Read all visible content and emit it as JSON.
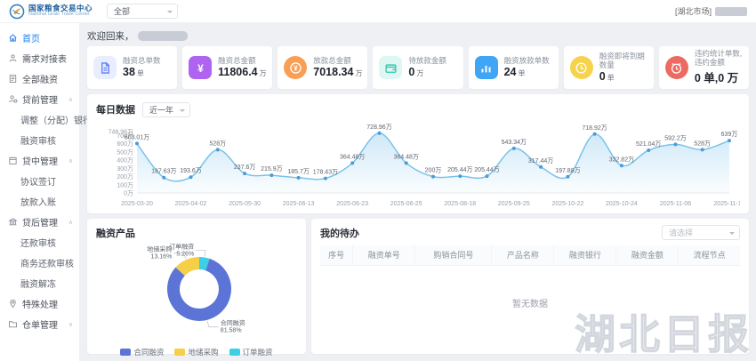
{
  "header": {
    "logo": {
      "title": "国家粮食交易中心",
      "subtitle": "National Grain Trade Center"
    },
    "scope_select": {
      "value": "全部"
    },
    "market_tag": "[湖北市场]"
  },
  "sidebar": {
    "items": [
      {
        "id": "home",
        "label": "首页",
        "icon": "home-icon",
        "type": "item",
        "active": true
      },
      {
        "id": "demand-list",
        "label": "需求对接表",
        "icon": "user-icon",
        "type": "item"
      },
      {
        "id": "all-financing",
        "label": "全部融资",
        "icon": "list-icon",
        "type": "item"
      },
      {
        "id": "pre-loan",
        "label": "贷前管理",
        "icon": "user-gear-icon",
        "type": "group",
        "state": "expanded"
      },
      {
        "id": "adjust-bank",
        "label": "调整（分配）银行",
        "type": "subitem"
      },
      {
        "id": "financing-review",
        "label": "融资审核",
        "type": "subitem"
      },
      {
        "id": "mid-loan",
        "label": "贷中管理",
        "icon": "calendar-icon",
        "type": "group",
        "state": "expanded"
      },
      {
        "id": "agreement-sign",
        "label": "协议签订",
        "type": "subitem"
      },
      {
        "id": "disbursement-entry",
        "label": "放款入账",
        "type": "subitem"
      },
      {
        "id": "post-loan",
        "label": "贷后管理",
        "icon": "bank-icon",
        "type": "group",
        "state": "expanded"
      },
      {
        "id": "repayment-review",
        "label": "还款审核",
        "type": "subitem"
      },
      {
        "id": "biz-repayment-review",
        "label": "商务还款审核",
        "type": "subitem"
      },
      {
        "id": "financing-unfreeze",
        "label": "融资解冻",
        "type": "subitem"
      },
      {
        "id": "special-handling",
        "label": "特殊处理",
        "icon": "pin-icon",
        "type": "item"
      },
      {
        "id": "warehouse-receipt",
        "label": "仓单管理",
        "icon": "folder-icon",
        "type": "group",
        "state": "collapsed"
      }
    ]
  },
  "main": {
    "welcome_prefix": "欢迎回来，",
    "stat_cards": [
      {
        "title": "融资总单数",
        "value": "38",
        "unit": "单",
        "icon": "document-icon",
        "variant": "soft",
        "shape": "square",
        "color": "#5b7cfa",
        "bg": "#e8eeff"
      },
      {
        "title": "融资总金额",
        "value": "11806.4",
        "unit": "万",
        "icon": "money-icon",
        "variant": "solid",
        "shape": "square",
        "color": "#ae64f0"
      },
      {
        "title": "放款总金额",
        "value": "7018.34",
        "unit": "万",
        "icon": "coin-icon",
        "variant": "solid",
        "shape": "circle",
        "color": "#f89f55"
      },
      {
        "title": "待放款金额",
        "value": "0",
        "unit": "万",
        "icon": "wallet-icon",
        "variant": "soft",
        "shape": "square",
        "color": "#35c4ae",
        "bg": "#dff7f2"
      },
      {
        "title": "融资放款单数",
        "value": "24",
        "unit": "单",
        "icon": "bar-chart-icon",
        "variant": "solid",
        "shape": "square",
        "color": "#41a5f6"
      },
      {
        "title": "融资即将到期数量",
        "value": "0",
        "unit": "单",
        "icon": "clock-icon",
        "variant": "solid",
        "shape": "circle",
        "color": "#f7d34c"
      },
      {
        "title": "违约统计单数,违约金额",
        "value": "0 单,0 万",
        "unit": "",
        "icon": "alarm-clock-icon",
        "variant": "solid",
        "shape": "circle",
        "color": "#ec6a62"
      }
    ],
    "daily_panel": {
      "title": "每日数据",
      "range_select": {
        "value": "近一年"
      }
    },
    "product_panel": {
      "title": "融资产品"
    },
    "todo_panel": {
      "title": "我的待办",
      "filter_select": {
        "placeholder": "请选择"
      },
      "columns": [
        "序号",
        "融资单号",
        "购销合同号",
        "产品名称",
        "融资银行",
        "融资金额",
        "流程节点"
      ],
      "empty_text": "暂无数据"
    }
  },
  "chart_data": [
    {
      "type": "area",
      "title": "每日数据",
      "unit": "万",
      "x_labels": [
        "2025-03-20",
        "2025-04-02",
        "2025-05-30",
        "2025-06-13",
        "2025-06-23",
        "2025-06-25",
        "2025-08-18",
        "2025-09-25",
        "2025-10-22",
        "2025-10-24",
        "2025-11-06",
        "2025-11-18"
      ],
      "values": [
        603.01,
        187.63,
        193.6,
        528,
        237.6,
        215.9,
        185.7,
        178.43,
        364.48,
        728.96,
        364.48,
        200,
        205.44,
        205.44,
        543.34,
        317.44,
        197.88,
        718.92,
        332.82,
        521.04,
        592.2,
        528,
        639
      ],
      "ylim": [
        0,
        748.96
      ],
      "y_ticks": [
        0,
        100,
        200,
        300,
        400,
        500,
        600,
        700,
        748.96
      ],
      "line_color": "#79c3ea",
      "point_color": "#4b9bd8",
      "area_color": "#a8d6f2",
      "legend_position": "none",
      "grid": false
    },
    {
      "type": "pie",
      "title": "融资产品",
      "segments": [
        {
          "name": "合同融资",
          "pct": 81.58,
          "color": "#5b74d6"
        },
        {
          "name": "地储采购",
          "pct": 13.16,
          "color": "#f5cf46"
        },
        {
          "name": "订单融资",
          "pct": 5.26,
          "color": "#3bd0e6"
        }
      ],
      "legend_position": "bottom"
    }
  ],
  "watermark": {
    "text": "湖北日报"
  }
}
